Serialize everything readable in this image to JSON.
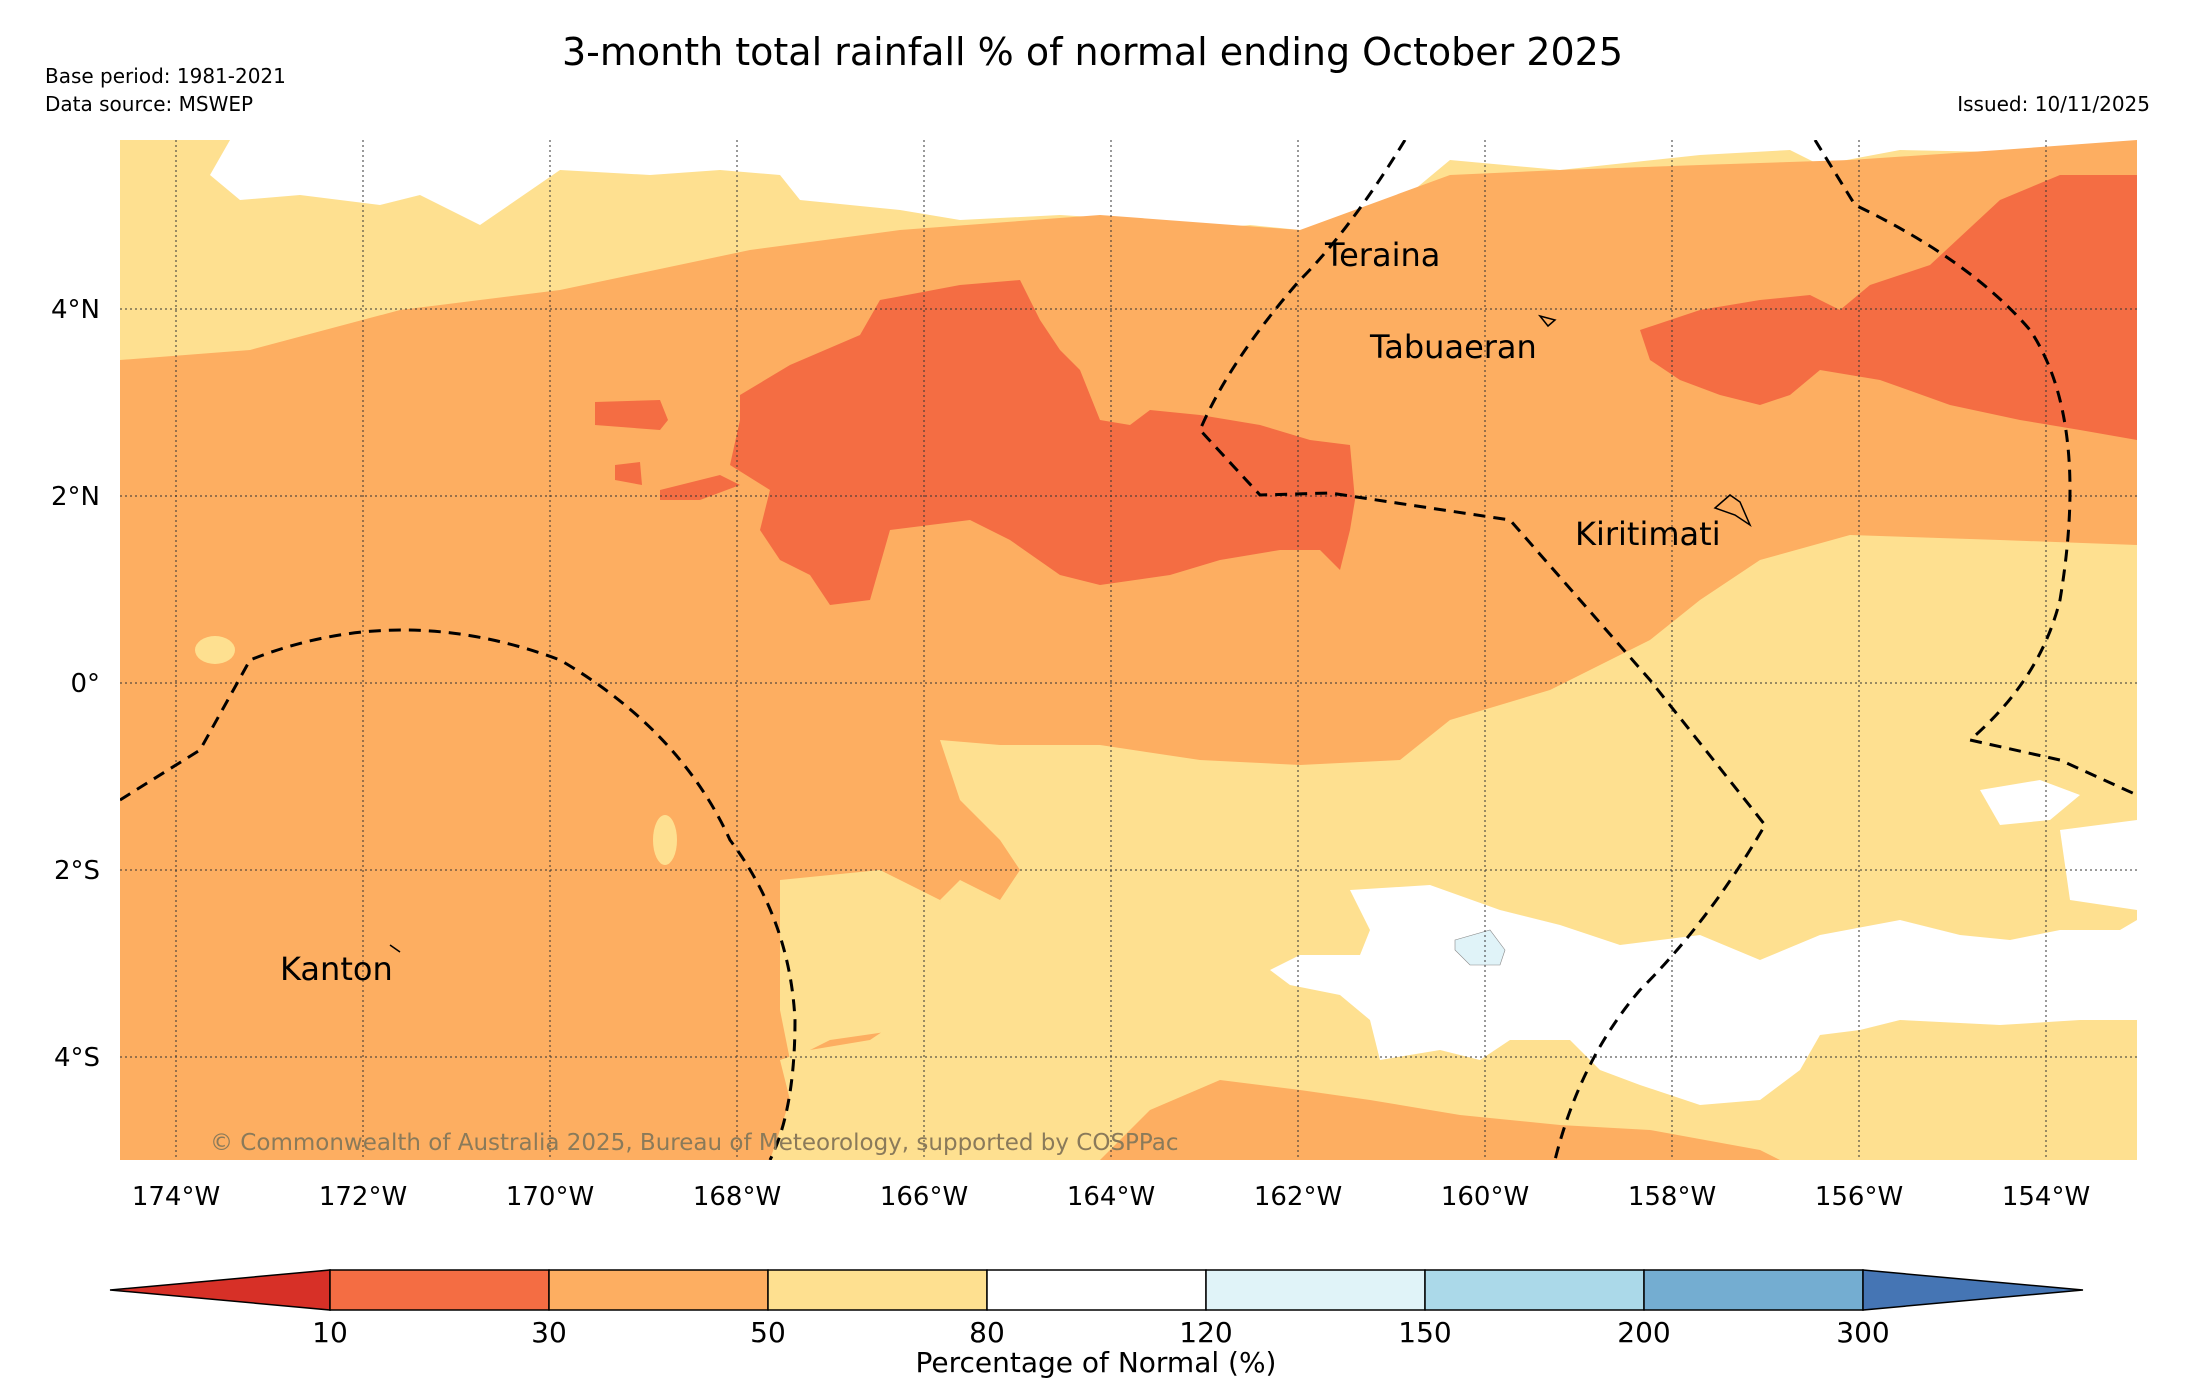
{
  "title": "3-month total rainfall % of normal ending October 2025",
  "base_period": "Base period: 1981-2021",
  "data_source": "Data source: MSWEP",
  "issued": "Issued: 10/11/2025",
  "copyright": "© Commonwealth of Australia 2025, Bureau of Meteorology, supported by COSPPac",
  "places": {
    "teraina": "Teraina",
    "tabuaeran": "Tabuaeran",
    "kiritimati": "Kiritimati",
    "kanton": "Kanton"
  },
  "lat_labels": [
    "4°N",
    "2°N",
    "0°",
    "2°S",
    "4°S"
  ],
  "lon_labels": [
    "174°W",
    "172°W",
    "170°W",
    "168°W",
    "166°W",
    "164°W",
    "162°W",
    "160°W",
    "158°W",
    "156°W",
    "154°W"
  ],
  "colorbar": {
    "label": "Percentage of Normal (%)",
    "ticks": [
      "10",
      "30",
      "50",
      "80",
      "120",
      "150",
      "200",
      "300"
    ],
    "colors": [
      "#d73027",
      "#f46d43",
      "#fdae61",
      "#fee090",
      "#ffffff",
      "#e0f3f8",
      "#abd9e9",
      "#74add1",
      "#4575b4"
    ]
  }
}
